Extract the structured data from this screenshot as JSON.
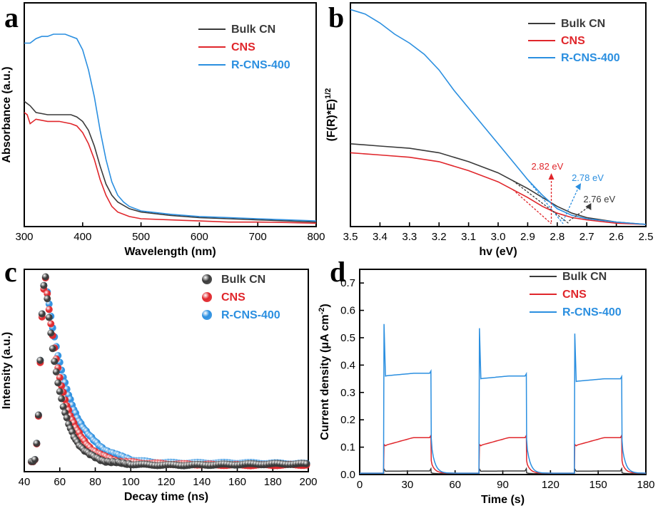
{
  "colors": {
    "bulk": "#3a3a3a",
    "cns": "#e0262b",
    "rcns": "#2b8fe0"
  },
  "chart_data": [
    {
      "panel": "a",
      "type": "line",
      "xlabel": "Wavelength (nm)",
      "ylabel": "Absorbance (a.u.)",
      "xlim": [
        300,
        800
      ],
      "ylim": [
        0,
        1
      ],
      "xticks": [
        300,
        400,
        500,
        600,
        700,
        800
      ],
      "legend": [
        "Bulk CN",
        "CNS",
        "R-CNS-400"
      ],
      "series": [
        {
          "name": "Bulk CN",
          "color_key": "bulk",
          "x": [
            300,
            310,
            320,
            340,
            360,
            380,
            390,
            400,
            410,
            420,
            430,
            440,
            450,
            460,
            480,
            500,
            550,
            600,
            650,
            700,
            750,
            800
          ],
          "y": [
            0.56,
            0.54,
            0.51,
            0.5,
            0.5,
            0.5,
            0.49,
            0.47,
            0.43,
            0.36,
            0.27,
            0.19,
            0.14,
            0.11,
            0.08,
            0.065,
            0.05,
            0.04,
            0.035,
            0.03,
            0.025,
            0.02
          ]
        },
        {
          "name": "CNS",
          "color_key": "cns",
          "x": [
            300,
            305,
            310,
            320,
            340,
            360,
            380,
            390,
            400,
            410,
            420,
            430,
            440,
            450,
            460,
            480,
            500,
            550,
            600,
            650,
            700,
            750,
            800
          ],
          "y": [
            0.51,
            0.5,
            0.46,
            0.48,
            0.47,
            0.47,
            0.46,
            0.45,
            0.42,
            0.37,
            0.3,
            0.21,
            0.14,
            0.09,
            0.065,
            0.045,
            0.035,
            0.03,
            0.025,
            0.02,
            0.02,
            0.018,
            0.015
          ]
        },
        {
          "name": "R-CNS-400",
          "color_key": "rcns",
          "x": [
            300,
            310,
            320,
            330,
            340,
            350,
            360,
            370,
            380,
            390,
            400,
            410,
            420,
            430,
            440,
            450,
            460,
            470,
            480,
            500,
            550,
            600,
            650,
            700,
            750,
            800
          ],
          "y": [
            0.82,
            0.82,
            0.84,
            0.85,
            0.85,
            0.86,
            0.86,
            0.86,
            0.85,
            0.84,
            0.79,
            0.7,
            0.58,
            0.43,
            0.3,
            0.2,
            0.14,
            0.11,
            0.09,
            0.07,
            0.055,
            0.045,
            0.04,
            0.035,
            0.03,
            0.025
          ]
        }
      ]
    },
    {
      "panel": "b",
      "type": "line",
      "xlabel": "hv (eV)",
      "ylabel": "(F(R)*E)",
      "ylabel_sup": "1/2",
      "xlim": [
        3.5,
        2.5
      ],
      "ylim": [
        0,
        1
      ],
      "xticks": [
        "3.5",
        "3.4",
        "3.3",
        "3.2",
        "3.1",
        "3.0",
        "2.9",
        "2.8",
        "2.7",
        "2.6",
        "2.5"
      ],
      "legend": [
        "Bulk CN",
        "CNS",
        "R-CNS-400"
      ],
      "annotations": [
        {
          "text": "2.82 eV",
          "color_key": "cns",
          "x": 2.82
        },
        {
          "text": "2.78 eV",
          "color_key": "rcns",
          "x": 2.78
        },
        {
          "text": "2.76 eV",
          "color_key": "bulk",
          "x": 2.76
        }
      ],
      "series": [
        {
          "name": "Bulk CN",
          "color_key": "bulk",
          "x": [
            3.5,
            3.4,
            3.3,
            3.2,
            3.1,
            3.0,
            2.9,
            2.85,
            2.8,
            2.75,
            2.7,
            2.6,
            2.5
          ],
          "y": [
            0.37,
            0.36,
            0.35,
            0.33,
            0.29,
            0.24,
            0.17,
            0.13,
            0.09,
            0.06,
            0.04,
            0.02,
            0.01
          ]
        },
        {
          "name": "CNS",
          "color_key": "cns",
          "x": [
            3.5,
            3.4,
            3.3,
            3.2,
            3.1,
            3.0,
            2.9,
            2.85,
            2.8,
            2.75,
            2.7,
            2.6,
            2.5
          ],
          "y": [
            0.33,
            0.32,
            0.31,
            0.29,
            0.25,
            0.2,
            0.13,
            0.09,
            0.06,
            0.04,
            0.03,
            0.015,
            0.01
          ]
        },
        {
          "name": "R-CNS-400",
          "color_key": "rcns",
          "x": [
            3.5,
            3.45,
            3.4,
            3.35,
            3.3,
            3.25,
            3.2,
            3.15,
            3.1,
            3.05,
            3.0,
            2.95,
            2.9,
            2.85,
            2.8,
            2.75,
            2.7,
            2.6,
            2.5
          ],
          "y": [
            0.97,
            0.95,
            0.91,
            0.86,
            0.82,
            0.77,
            0.7,
            0.61,
            0.53,
            0.45,
            0.37,
            0.29,
            0.21,
            0.14,
            0.08,
            0.05,
            0.035,
            0.02,
            0.01
          ]
        }
      ]
    },
    {
      "panel": "c",
      "type": "scatter",
      "xlabel": "Decay time (ns)",
      "ylabel": "Intensity (a.u.)",
      "xlim": [
        40,
        200
      ],
      "ylim": [
        0,
        1
      ],
      "xticks": [
        40,
        60,
        80,
        100,
        120,
        140,
        160,
        180,
        200
      ],
      "legend": [
        "Bulk CN",
        "CNS",
        "R-CNS-400"
      ],
      "series": [
        {
          "name": "Bulk CN",
          "color_key": "bulk",
          "peak_x": 52,
          "peak_y": 0.96,
          "tau": 8.5,
          "baseline": 0.035
        },
        {
          "name": "CNS",
          "color_key": "cns",
          "peak_x": 52,
          "peak_y": 0.96,
          "tau": 10.5,
          "baseline": 0.035
        },
        {
          "name": "R-CNS-400",
          "color_key": "rcns",
          "peak_x": 52,
          "peak_y": 0.96,
          "tau": 13.0,
          "baseline": 0.04
        }
      ]
    },
    {
      "panel": "d",
      "type": "line",
      "xlabel": "Time (s)",
      "ylabel": "Current density (μA cm",
      "ylabel_sup": "-2",
      "ylabel_tail": ")",
      "xlim": [
        0,
        180
      ],
      "ylim": [
        0,
        0.75
      ],
      "xticks": [
        0,
        30,
        60,
        90,
        120,
        150,
        180
      ],
      "yticks": [
        "0.0",
        "0.1",
        "0.2",
        "0.3",
        "0.4",
        "0.5",
        "0.6",
        "0.7"
      ],
      "legend": [
        "Bulk CN",
        "CNS",
        "R-CNS-400"
      ],
      "light_on": [
        [
          15,
          45
        ],
        [
          75,
          105
        ],
        [
          135,
          165
        ]
      ],
      "series": [
        {
          "name": "Bulk CN",
          "color_key": "bulk",
          "spike": 0.02,
          "start": 0.012,
          "end": 0.013,
          "dark": 0.003
        },
        {
          "name": "CNS",
          "color_key": "cns",
          "spike": 0.11,
          "start": 0.105,
          "end": 0.135,
          "dark": 0.005
        },
        {
          "name": "R-CNS-400",
          "color_key": "rcns",
          "spikes": [
            0.55,
            0.535,
            0.515
          ],
          "starts": [
            0.36,
            0.35,
            0.34
          ],
          "ends": [
            0.37,
            0.36,
            0.35
          ],
          "dark": 0.005
        }
      ]
    }
  ]
}
